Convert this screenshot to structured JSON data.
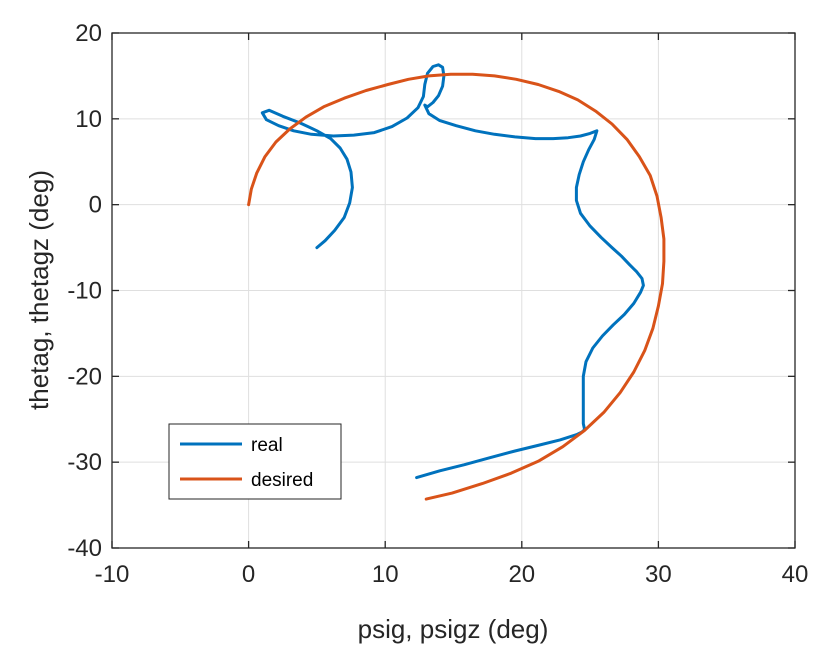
{
  "colors": {
    "real": "#0072BD",
    "desired": "#D95319",
    "grid": "#DFDFDF",
    "axes": "#262626",
    "background": "#FFFFFF"
  },
  "chart_data": {
    "type": "line",
    "title": "",
    "xlabel": "psig, psigz (deg)",
    "ylabel": "thetag, thetagz (deg)",
    "xlim": [
      -10,
      40
    ],
    "ylim": [
      -40,
      20
    ],
    "xticks": [
      -10,
      0,
      10,
      20,
      30,
      40
    ],
    "yticks": [
      -40,
      -30,
      -20,
      -10,
      0,
      10,
      20
    ],
    "xtick_labels": [
      "-10",
      "0",
      "10",
      "20",
      "30",
      "40"
    ],
    "ytick_labels": [
      "-40",
      "-30",
      "-20",
      "-10",
      "0",
      "10",
      "20"
    ],
    "grid": true,
    "legend_position": "bottom-left",
    "series": [
      {
        "name": "real",
        "color": "#0072BD",
        "x": [
          5.0,
          5.6,
          6.3,
          7.0,
          7.4,
          7.6,
          7.5,
          7.2,
          6.7,
          6.0,
          5.0,
          3.8,
          2.5,
          1.5,
          1.0,
          1.3,
          2.2,
          3.3,
          4.6,
          6.2,
          7.7,
          9.2,
          10.5,
          11.6,
          12.4,
          12.8,
          12.9,
          13.1,
          13.5,
          13.9,
          14.2,
          14.3,
          14.2,
          13.9,
          13.5,
          13.1,
          12.9,
          13.2,
          14.0,
          15.2,
          16.6,
          18.0,
          19.5,
          21.0,
          22.3,
          23.4,
          24.3,
          25.0,
          25.5,
          25.3,
          24.9,
          24.5,
          24.2,
          24.0,
          24.0,
          24.3,
          25.0,
          25.8,
          26.6,
          27.3,
          27.9,
          28.4,
          28.8,
          28.9,
          28.7,
          28.2,
          27.5,
          26.7,
          25.9,
          25.2,
          24.7,
          24.5,
          24.5,
          24.5,
          24.5,
          24.6,
          24.4,
          24.0,
          22.8,
          21.3,
          19.5,
          17.6,
          15.8,
          14.0,
          12.3
        ],
        "y": [
          -5.0,
          -4.2,
          -3.0,
          -1.5,
          0.2,
          2.0,
          3.8,
          5.3,
          6.6,
          7.7,
          8.6,
          9.5,
          10.3,
          11.0,
          10.7,
          9.9,
          9.2,
          8.6,
          8.2,
          8.0,
          8.1,
          8.4,
          9.1,
          10.1,
          11.3,
          12.6,
          14.0,
          15.3,
          16.1,
          16.3,
          16.0,
          15.0,
          13.8,
          12.7,
          11.9,
          11.4,
          11.6,
          10.6,
          9.8,
          9.2,
          8.6,
          8.2,
          7.9,
          7.7,
          7.7,
          7.8,
          8.0,
          8.3,
          8.6,
          7.6,
          6.4,
          5.0,
          3.5,
          2.0,
          0.5,
          -1.0,
          -2.5,
          -3.8,
          -5.0,
          -6.0,
          -7.0,
          -7.8,
          -8.6,
          -9.4,
          -10.2,
          -11.5,
          -12.8,
          -14.0,
          -15.3,
          -16.7,
          -18.3,
          -20.0,
          -22.0,
          -24.0,
          -25.5,
          -26.2,
          -26.5,
          -26.8,
          -27.4,
          -28.0,
          -28.7,
          -29.5,
          -30.3,
          -31.0,
          -31.8
        ]
      },
      {
        "name": "desired",
        "color": "#D95319",
        "x": [
          0.0,
          0.2,
          0.6,
          1.2,
          2.0,
          3.0,
          4.2,
          5.5,
          7.0,
          8.6,
          10.2,
          11.7,
          13.2,
          14.8,
          16.4,
          18.0,
          19.6,
          21.2,
          22.7,
          24.1,
          25.4,
          26.6,
          27.7,
          28.6,
          29.4,
          29.9,
          30.2,
          30.4,
          30.4,
          30.3,
          30.0,
          29.6,
          29.0,
          28.2,
          27.2,
          26.0,
          24.6,
          23.0,
          21.2,
          19.2,
          17.1,
          14.9,
          13.0
        ],
        "y": [
          0.0,
          1.8,
          3.7,
          5.6,
          7.3,
          8.8,
          10.2,
          11.4,
          12.4,
          13.3,
          14.0,
          14.6,
          15.0,
          15.2,
          15.2,
          15.0,
          14.6,
          14.0,
          13.2,
          12.2,
          10.9,
          9.4,
          7.6,
          5.6,
          3.4,
          1.0,
          -1.5,
          -4.0,
          -6.6,
          -9.2,
          -11.8,
          -14.4,
          -17.0,
          -19.5,
          -21.9,
          -24.2,
          -26.3,
          -28.2,
          -29.9,
          -31.3,
          -32.5,
          -33.6,
          -34.3
        ]
      }
    ]
  }
}
